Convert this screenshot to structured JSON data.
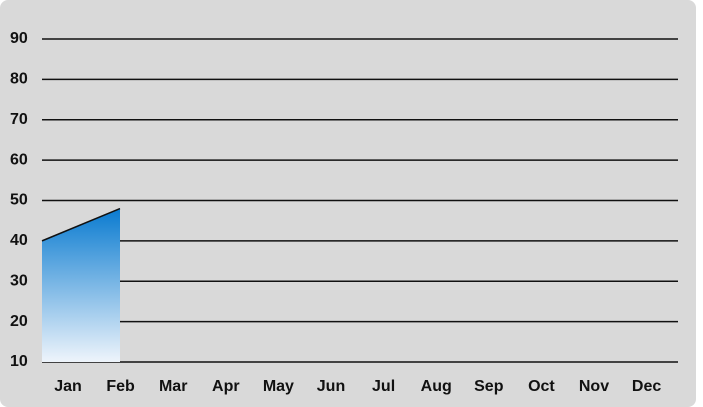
{
  "chart_data": {
    "type": "area",
    "categories": [
      "Jan",
      "Feb",
      "Mar",
      "Apr",
      "May",
      "Jun",
      "Jul",
      "Aug",
      "Sep",
      "Oct",
      "Nov",
      "Dec"
    ],
    "values": [
      40,
      48,
      null,
      null,
      null,
      null,
      null,
      null,
      null,
      null,
      null,
      null
    ],
    "color": "#0a7bd0",
    "ylim": [
      10,
      90
    ],
    "yticks": [
      10,
      20,
      30,
      40,
      50,
      60,
      70,
      80,
      90
    ],
    "grid": true
  }
}
